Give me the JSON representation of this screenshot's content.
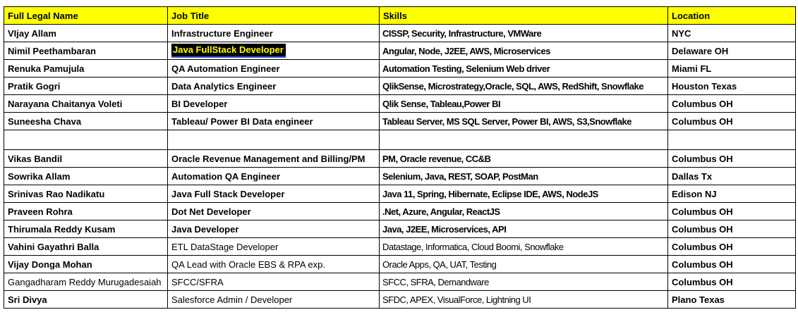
{
  "page": {
    "background_color": "#FFFFFF"
  },
  "table": {
    "header_bg": "#FFFF00",
    "border_color": "#000000",
    "text_color": "#000000",
    "found_highlight": {
      "text": "Java FullStack Developer",
      "bg": "#000000",
      "text_color": "#FFFF00",
      "underline_color": "#2E5FD9"
    },
    "columns": [
      {
        "id": "name",
        "label": "Full Legal Name"
      },
      {
        "id": "title",
        "label": "Job Title"
      },
      {
        "id": "skills",
        "label": "Skills"
      },
      {
        "id": "location",
        "label": "Location"
      }
    ],
    "rows": [
      {
        "name": "VIjay Allam",
        "title": "Infrastructure Engineer",
        "skills": "CISSP, Security, Infrastructure, VMWare",
        "location": "NYC"
      },
      {
        "name": "Nimil Peethambaran",
        "title": "Java FullStack Developer",
        "skills": "Angular, Node, J2EE, AWS, Microservices",
        "location": "Delaware OH",
        "found": "title"
      },
      {
        "name": "Renuka Pamujula",
        "title": "QA Automation Engineer",
        "skills": "Automation Testing, Selenium Web driver",
        "location": "Miami FL"
      },
      {
        "name": "Pratik Gogri",
        "title": "Data Analytics Engineer",
        "skills": "QlikSense, Microstrategy,Oracle, SQL, AWS, RedShift, Snowflake",
        "location": "Houston Texas"
      },
      {
        "name": "Narayana Chaitanya Voleti",
        "title": "BI Developer",
        "skills": "Qlik Sense, Tableau,Power BI",
        "location": "Columbus OH"
      },
      {
        "name": "Suneesha Chava",
        "title": "Tableau/ Power BI Data engineer",
        "skills": "Tableau Server, MS SQL Server, Power BI, AWS, S3,Snowflake",
        "location": "Columbus OH"
      },
      {
        "name": "",
        "title": "",
        "skills": "",
        "location": "",
        "empty": true
      },
      {
        "name": "Vikas Bandil",
        "title": "Oracle Revenue Management and Billing/PM",
        "skills": "PM, Oracle revenue, CC&B",
        "location": "Columbus OH"
      },
      {
        "name": "Sowrika Allam",
        "title": "Automation QA Engineer",
        "skills": "Selenium, Java, REST, SOAP, PostMan",
        "location": "Dallas Tx"
      },
      {
        "name": "Srinivas Rao Nadikatu",
        "title": "Java Full Stack Developer",
        "skills": "Java 11, Spring, Hibernate, Eclipse IDE, AWS, NodeJS",
        "location": "Edison NJ"
      },
      {
        "name": "Praveen Rohra",
        "title": "Dot Net Developer",
        "skills": ".Net, Azure, Angular, ReactJS",
        "location": "Columbus OH"
      },
      {
        "name": "Thirumala Reddy Kusam",
        "title": "Java Developer",
        "skills": "Java, J2EE, Microservices, API",
        "location": "Columbus OH"
      },
      {
        "name": "Vahini Gayathri Balla",
        "title": "ETL DataStage Developer",
        "skills": "Datastage, Informatica, Cloud Boomi, Snowflake",
        "location": "Columbus OH",
        "regular": [
          "title",
          "skills"
        ]
      },
      {
        "name": "Vijay Donga Mohan",
        "title": "QA Lead with Oracle EBS & RPA exp.",
        "skills": "Oracle Apps, QA, UAT, Testing",
        "location": "Columbus OH",
        "regular": [
          "title",
          "skills"
        ]
      },
      {
        "name": "Gangadharam Reddy Murugadesaiah",
        "title": "SFCC/SFRA",
        "skills": "SFCC, SFRA, Demandware",
        "location": "Columbus OH",
        "regular": [
          "name",
          "title",
          "skills"
        ]
      },
      {
        "name": "Sri Divya",
        "title": "Salesforce Admin / Developer",
        "skills": "SFDC, APEX, VisualForce, Lightning UI",
        "location": "Plano Texas",
        "regular": [
          "title",
          "skills"
        ]
      }
    ]
  }
}
